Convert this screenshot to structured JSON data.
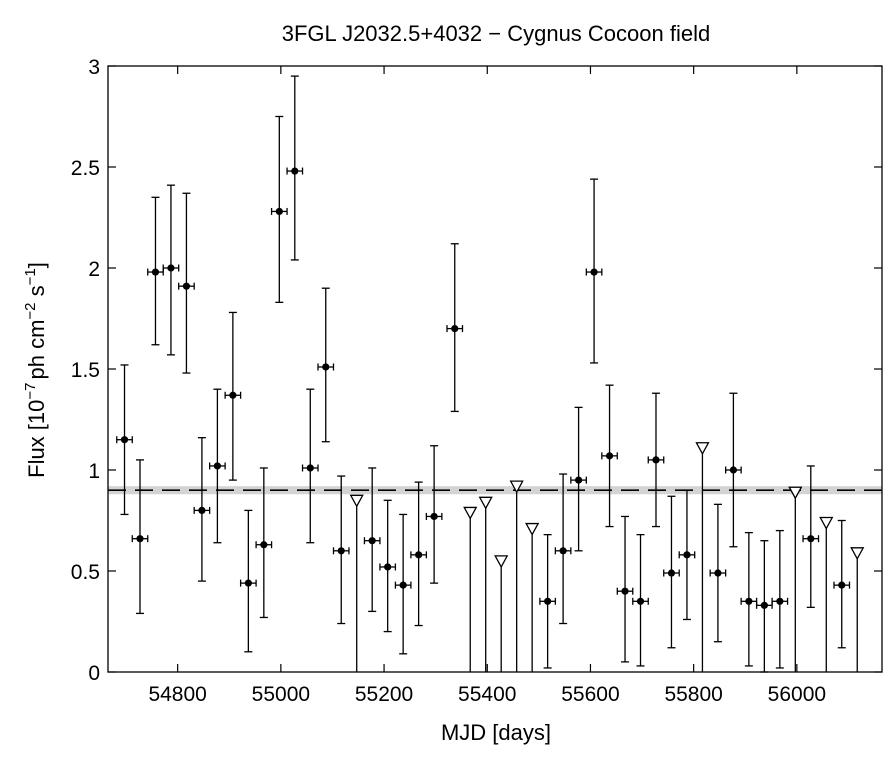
{
  "chart_data": {
    "type": "scatter",
    "title": "3FGL J2032.5+4032 − Cygnus Cocoon field",
    "xlabel": "MJD [days]",
    "ylabel": {
      "prefix": "Flux [10",
      "exp1": "−7",
      "mid": "ph cm",
      "exp2": "−2",
      "mid2": " s",
      "exp3": "−1",
      "suffix": "]"
    },
    "xlim": [
      54665,
      56165
    ],
    "ylim": [
      0,
      3
    ],
    "x_ticks": [
      54800,
      55000,
      55200,
      55400,
      55600,
      55800,
      56000
    ],
    "y_ticks": [
      {
        "value": 0,
        "label": "0"
      },
      {
        "value": 0.5,
        "label": "0.5"
      },
      {
        "value": 1,
        "label": "1"
      },
      {
        "value": 1.5,
        "label": "1.5"
      },
      {
        "value": 2,
        "label": "2"
      },
      {
        "value": 2.5,
        "label": "2.5"
      },
      {
        "value": 3,
        "label": "3"
      }
    ],
    "grid": false,
    "reference_line": {
      "value": 0.9,
      "band": [
        0.88,
        0.92
      ],
      "style": "dashed",
      "band_color": "#d3d3d3"
    },
    "bin_half_width_days": 15,
    "series": [
      {
        "marker": "filled-circle",
        "color": "#000000",
        "points": [
          {
            "x": 54697,
            "y": 1.15,
            "lo": 0.78,
            "hi": 1.52
          },
          {
            "x": 54727,
            "y": 0.66,
            "lo": 0.29,
            "hi": 1.05
          },
          {
            "x": 54757,
            "y": 1.98,
            "lo": 1.62,
            "hi": 2.35
          },
          {
            "x": 54787,
            "y": 2.0,
            "lo": 1.57,
            "hi": 2.41
          },
          {
            "x": 54817,
            "y": 1.91,
            "lo": 1.48,
            "hi": 2.37
          },
          {
            "x": 54847,
            "y": 0.8,
            "lo": 0.45,
            "hi": 1.16
          },
          {
            "x": 54877,
            "y": 1.02,
            "lo": 0.64,
            "hi": 1.4
          },
          {
            "x": 54907,
            "y": 1.37,
            "lo": 0.95,
            "hi": 1.78
          },
          {
            "x": 54937,
            "y": 0.44,
            "lo": 0.1,
            "hi": 0.8
          },
          {
            "x": 54967,
            "y": 0.63,
            "lo": 0.27,
            "hi": 1.01
          },
          {
            "x": 54997,
            "y": 2.28,
            "lo": 1.83,
            "hi": 2.75
          },
          {
            "x": 55027,
            "y": 2.48,
            "lo": 2.04,
            "hi": 2.95
          },
          {
            "x": 55057,
            "y": 1.01,
            "lo": 0.64,
            "hi": 1.4
          },
          {
            "x": 55087,
            "y": 1.51,
            "lo": 1.14,
            "hi": 1.9
          },
          {
            "x": 55117,
            "y": 0.6,
            "lo": 0.24,
            "hi": 0.97
          },
          {
            "x": 55177,
            "y": 0.65,
            "lo": 0.3,
            "hi": 1.01
          },
          {
            "x": 55207,
            "y": 0.52,
            "lo": 0.2,
            "hi": 0.85
          },
          {
            "x": 55237,
            "y": 0.43,
            "lo": 0.09,
            "hi": 0.78
          },
          {
            "x": 55267,
            "y": 0.58,
            "lo": 0.23,
            "hi": 0.94
          },
          {
            "x": 55297,
            "y": 0.77,
            "lo": 0.44,
            "hi": 1.12
          },
          {
            "x": 55337,
            "y": 1.7,
            "lo": 1.29,
            "hi": 2.12
          },
          {
            "x": 55517,
            "y": 0.35,
            "lo": 0.02,
            "hi": 0.68
          },
          {
            "x": 55547,
            "y": 0.6,
            "lo": 0.24,
            "hi": 0.98
          },
          {
            "x": 55577,
            "y": 0.95,
            "lo": 0.6,
            "hi": 1.31
          },
          {
            "x": 55607,
            "y": 1.98,
            "lo": 1.53,
            "hi": 2.44
          },
          {
            "x": 55637,
            "y": 1.07,
            "lo": 0.72,
            "hi": 1.42
          },
          {
            "x": 55667,
            "y": 0.4,
            "lo": 0.05,
            "hi": 0.77
          },
          {
            "x": 55697,
            "y": 0.35,
            "lo": 0.03,
            "hi": 0.68
          },
          {
            "x": 55727,
            "y": 1.05,
            "lo": 0.72,
            "hi": 1.38
          },
          {
            "x": 55757,
            "y": 0.49,
            "lo": 0.12,
            "hi": 0.87
          },
          {
            "x": 55787,
            "y": 0.58,
            "lo": 0.26,
            "hi": 0.9
          },
          {
            "x": 55847,
            "y": 0.49,
            "lo": 0.15,
            "hi": 0.83
          },
          {
            "x": 55877,
            "y": 1.0,
            "lo": 0.62,
            "hi": 1.38
          },
          {
            "x": 55907,
            "y": 0.35,
            "lo": 0.03,
            "hi": 0.69
          },
          {
            "x": 55937,
            "y": 0.33,
            "lo": 0.0,
            "hi": 0.65
          },
          {
            "x": 55967,
            "y": 0.35,
            "lo": 0.02,
            "hi": 0.7
          },
          {
            "x": 56027,
            "y": 0.66,
            "lo": 0.32,
            "hi": 1.02
          },
          {
            "x": 56087,
            "y": 0.43,
            "lo": 0.12,
            "hi": 0.75
          }
        ]
      },
      {
        "marker": "open-triangle-down",
        "color": "#000000",
        "points": [
          {
            "x": 55147,
            "y": 0.85
          },
          {
            "x": 55367,
            "y": 0.79
          },
          {
            "x": 55397,
            "y": 0.84
          },
          {
            "x": 55427,
            "y": 0.55
          },
          {
            "x": 55457,
            "y": 0.92
          },
          {
            "x": 55487,
            "y": 0.71
          },
          {
            "x": 55817,
            "y": 1.11
          },
          {
            "x": 55997,
            "y": 0.89
          },
          {
            "x": 56057,
            "y": 0.74
          },
          {
            "x": 56117,
            "y": 0.59
          }
        ]
      }
    ]
  }
}
